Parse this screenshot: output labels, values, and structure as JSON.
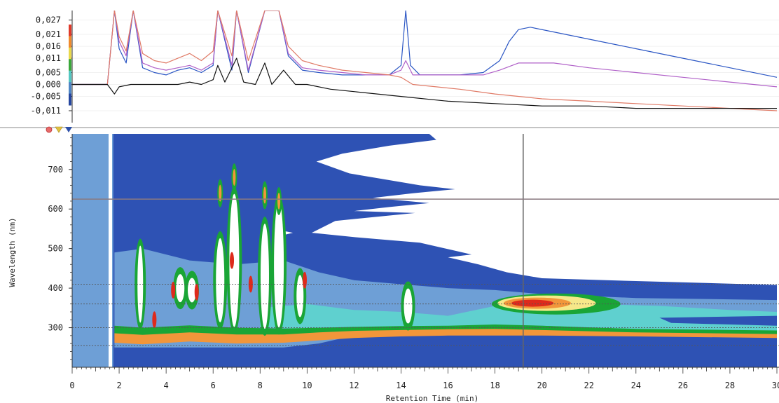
{
  "chart_data": [
    {
      "type": "line",
      "title": "",
      "xlabel": "",
      "ylabel": "",
      "xlim": [
        0,
        30
      ],
      "ylim": [
        -0.016,
        0.031
      ],
      "y_ticks": [
        "0,027",
        "0,021",
        "0,016",
        "0,011",
        "0,005",
        "0,000",
        "-0,005",
        "-0,011"
      ],
      "y_tick_values": [
        0.027,
        0.021,
        0.016,
        0.011,
        0.005,
        0.0,
        -0.005,
        -0.011
      ],
      "level_colors": [
        "#e03a2a",
        "#f08a2c",
        "#e9d84a",
        "#3aa83a",
        "#53c7c2",
        "#4f86c6",
        "#2546a0"
      ],
      "series": [
        {
          "color": "#2b56c4",
          "x": [
            0,
            1.5,
            1.8,
            2.0,
            2.3,
            2.6,
            3.0,
            3.5,
            4.0,
            4.5,
            5.0,
            5.5,
            6.0,
            6.2,
            6.8,
            7.0,
            7.5,
            8.2,
            8.8,
            9.2,
            9.8,
            10.5,
            11.5,
            12.5,
            13.5,
            14.0,
            14.2,
            14.4,
            14.8,
            15.5,
            16.5,
            17.5,
            18.2,
            18.6,
            19.0,
            19.5,
            20.5,
            22.0,
            24.0,
            26.0,
            28.0,
            30.0
          ],
          "y": [
            0.0,
            0.0,
            0.031,
            0.015,
            0.009,
            0.031,
            0.007,
            0.005,
            0.004,
            0.006,
            0.007,
            0.005,
            0.008,
            0.031,
            0.006,
            0.031,
            0.005,
            0.031,
            0.031,
            0.012,
            0.006,
            0.005,
            0.004,
            0.004,
            0.004,
            0.008,
            0.031,
            0.008,
            0.004,
            0.004,
            0.004,
            0.005,
            0.01,
            0.018,
            0.023,
            0.024,
            0.022,
            0.019,
            0.015,
            0.011,
            0.007,
            0.003
          ]
        },
        {
          "color": "#b060c8",
          "x": [
            0,
            1.5,
            1.8,
            2.0,
            2.3,
            2.6,
            3.0,
            3.5,
            4.0,
            4.5,
            5.0,
            5.5,
            6.0,
            6.2,
            6.8,
            7.0,
            7.5,
            8.2,
            8.8,
            9.2,
            9.8,
            10.5,
            11.5,
            12.5,
            13.5,
            14.0,
            14.2,
            14.5,
            15.5,
            16.5,
            17.5,
            18.2,
            19.0,
            20.5,
            22.0,
            24.0,
            26.0,
            28.0,
            30.0
          ],
          "y": [
            0.0,
            0.0,
            0.031,
            0.018,
            0.012,
            0.031,
            0.009,
            0.007,
            0.006,
            0.007,
            0.008,
            0.006,
            0.009,
            0.031,
            0.008,
            0.031,
            0.006,
            0.031,
            0.031,
            0.013,
            0.007,
            0.006,
            0.005,
            0.004,
            0.004,
            0.006,
            0.01,
            0.004,
            0.004,
            0.004,
            0.004,
            0.006,
            0.009,
            0.009,
            0.007,
            0.005,
            0.003,
            0.001,
            -0.001
          ]
        },
        {
          "color": "#e07a66",
          "x": [
            0,
            1.5,
            1.8,
            2.0,
            2.3,
            2.6,
            3.0,
            3.5,
            4.0,
            4.5,
            5.0,
            5.5,
            6.0,
            6.2,
            6.8,
            7.0,
            7.5,
            8.2,
            8.8,
            9.2,
            9.8,
            10.5,
            11.5,
            12.5,
            13.5,
            14.0,
            14.5,
            15.5,
            16.5,
            18.0,
            20.0,
            22.0,
            24.0,
            26.0,
            28.0,
            30.0
          ],
          "y": [
            0.0,
            0.0,
            0.031,
            0.02,
            0.014,
            0.031,
            0.013,
            0.01,
            0.009,
            0.011,
            0.013,
            0.01,
            0.014,
            0.031,
            0.012,
            0.031,
            0.01,
            0.031,
            0.031,
            0.016,
            0.01,
            0.008,
            0.006,
            0.005,
            0.004,
            0.003,
            0.0,
            -0.001,
            -0.002,
            -0.004,
            -0.006,
            -0.007,
            -0.008,
            -0.009,
            -0.01,
            -0.011
          ]
        },
        {
          "color": "#111111",
          "x": [
            0,
            1.5,
            1.8,
            2.0,
            2.5,
            3.0,
            3.5,
            4.0,
            4.5,
            5.0,
            5.5,
            6.0,
            6.2,
            6.5,
            7.0,
            7.3,
            7.8,
            8.2,
            8.5,
            9.0,
            9.5,
            10.0,
            11.0,
            12.0,
            14.0,
            16.0,
            18.0,
            20.0,
            22.0,
            24.0,
            26.0,
            28.0,
            30.0
          ],
          "y": [
            0.0,
            0.0,
            -0.004,
            -0.001,
            0.0,
            0.0,
            0.0,
            0.0,
            0.0,
            0.001,
            0.0,
            0.002,
            0.008,
            0.001,
            0.011,
            0.001,
            0.0,
            0.009,
            0.0,
            0.006,
            0.0,
            0.0,
            -0.002,
            -0.003,
            -0.005,
            -0.007,
            -0.008,
            -0.009,
            -0.009,
            -0.01,
            -0.01,
            -0.01,
            -0.01
          ]
        }
      ]
    },
    {
      "type": "heatmap",
      "xlabel": "Retention Time (min)",
      "ylabel": "Wavelength (nm)",
      "xlim": [
        0,
        30
      ],
      "ylim": [
        200,
        790
      ],
      "x_ticks": [
        "0",
        "2",
        "4",
        "6",
        "8",
        "10",
        "12",
        "14",
        "16",
        "18",
        "20",
        "22",
        "24",
        "26",
        "28",
        "30"
      ],
      "x_tick_values": [
        0,
        2,
        4,
        6,
        8,
        10,
        12,
        14,
        16,
        18,
        20,
        22,
        24,
        26,
        28,
        30
      ],
      "y_ticks": [
        "700",
        "600",
        "500",
        "400",
        "300"
      ],
      "y_tick_values": [
        700,
        600,
        500,
        400,
        300
      ],
      "cursor": {
        "retention_time": 19.2,
        "wavelength": 625
      },
      "reference_wavelengths": [
        410,
        360,
        300,
        255
      ],
      "colors": {
        "base": "#2e52b4",
        "light": "#6e9fd6",
        "cyan": "#5fd0cf",
        "green": "#1aa536",
        "yellow": "#f6e889",
        "orange": "#f2963a",
        "red": "#de2a1c"
      }
    }
  ]
}
